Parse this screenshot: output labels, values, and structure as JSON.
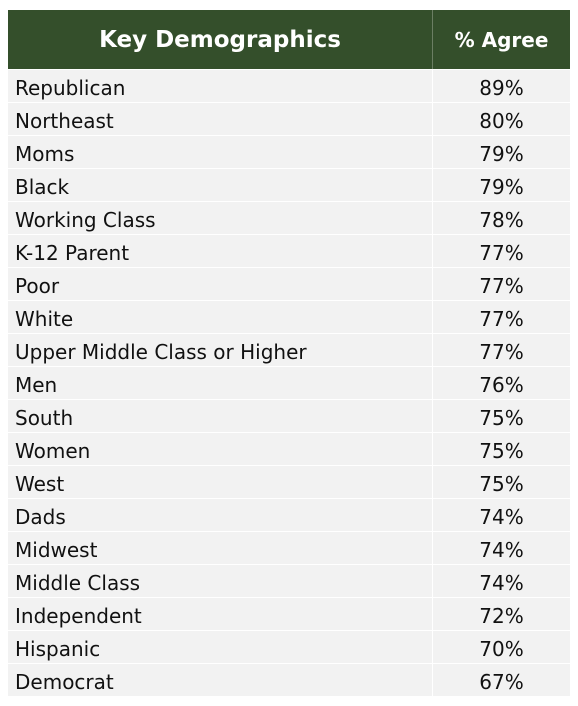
{
  "chart_data": {
    "type": "table",
    "columns": [
      "Key Demographics",
      "% Agree"
    ],
    "rows": [
      {
        "label": "Republican",
        "value": "89%"
      },
      {
        "label": "Northeast",
        "value": "80%"
      },
      {
        "label": "Moms",
        "value": "79%"
      },
      {
        "label": "Black",
        "value": "79%"
      },
      {
        "label": "Working Class",
        "value": "78%"
      },
      {
        "label": "K-12 Parent",
        "value": "77%"
      },
      {
        "label": "Poor",
        "value": "77%"
      },
      {
        "label": "White",
        "value": "77%"
      },
      {
        "label": "Upper Middle Class or Higher",
        "value": "77%"
      },
      {
        "label": "Men",
        "value": "76%"
      },
      {
        "label": "South",
        "value": "75%"
      },
      {
        "label": "Women",
        "value": "75%"
      },
      {
        "label": "West",
        "value": "75%"
      },
      {
        "label": "Dads",
        "value": "74%"
      },
      {
        "label": "Midwest",
        "value": "74%"
      },
      {
        "label": "Middle Class",
        "value": "74%"
      },
      {
        "label": "Independent",
        "value": "72%"
      },
      {
        "label": "Hispanic",
        "value": "70%"
      },
      {
        "label": "Democrat",
        "value": "67%"
      }
    ],
    "colors": {
      "header_background": "#344f2b",
      "header_text": "#ffffff",
      "row_background": "#f2f2f2",
      "row_text": "#111111"
    }
  }
}
